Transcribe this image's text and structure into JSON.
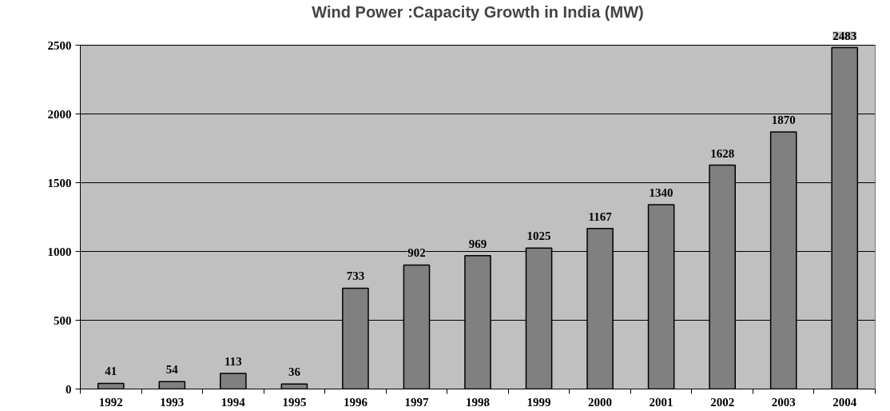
{
  "chart_data": {
    "type": "bar",
    "title": "Wind Power :Capacity Growth in India (MW)",
    "categories": [
      "1992",
      "1993",
      "1994",
      "1995",
      "1996",
      "1997",
      "1998",
      "1999",
      "2000",
      "2001",
      "2002",
      "2003",
      "2004"
    ],
    "values": [
      41,
      54,
      113,
      36,
      733,
      902,
      969,
      1025,
      1167,
      1340,
      1628,
      1870,
      2483
    ],
    "color": "#808080",
    "ylim": [
      0,
      2500
    ],
    "yticks": [
      0,
      500,
      1000,
      1500,
      2000,
      2500
    ],
    "grid": "y",
    "data_labels": true
  }
}
